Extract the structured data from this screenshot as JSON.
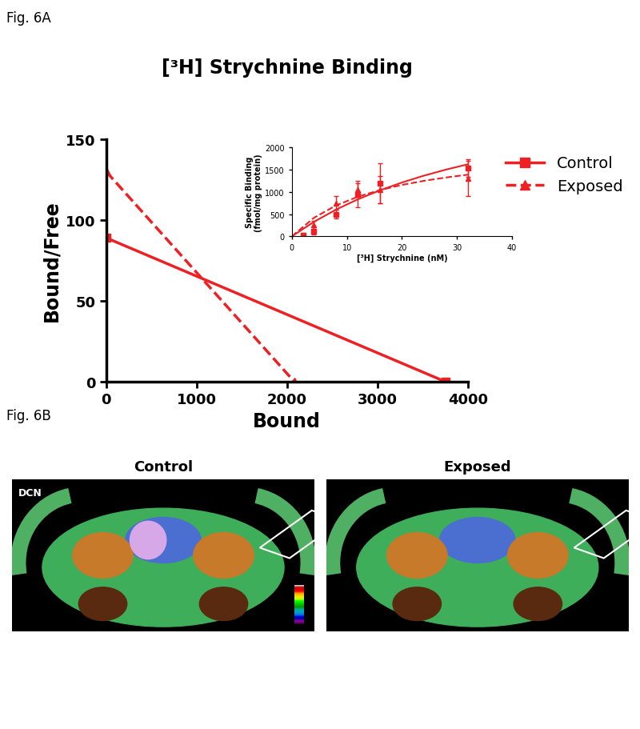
{
  "figure_labels": {
    "a": "Fig. 6A",
    "b": "Fig. 6B"
  },
  "chart_data": [
    {
      "type": "line",
      "title": "[³H] Strychnine Binding",
      "x_label": "Bound",
      "y_label": "Bound/Free",
      "xlim": [
        0,
        4000
      ],
      "xticks": [
        0,
        1000,
        2000,
        3000,
        4000
      ],
      "ylim": [
        0,
        150
      ],
      "yticks": [
        0,
        50,
        100,
        150
      ],
      "legend": "upper right",
      "grid": false,
      "series": [
        {
          "name": "Control",
          "color": "#ee2024",
          "marker": "square",
          "line_style": "solid",
          "x": [
            0,
            3750
          ],
          "values": [
            89,
            0
          ]
        },
        {
          "name": "Exposed",
          "color": "#ee2024",
          "marker": "triangle",
          "line_style": "dashed",
          "x": [
            0,
            2080
          ],
          "values": [
            130,
            0
          ]
        }
      ]
    },
    {
      "type": "scatter",
      "x_label": "[³H] Strychnine (nM)",
      "y_label": "Specific Binding\n(fmol/mg protein)",
      "xlim": [
        0,
        40
      ],
      "xticks": [
        0,
        10,
        20,
        30,
        40
      ],
      "ylim": [
        0,
        2000
      ],
      "yticks": [
        0,
        500,
        1000,
        1500,
        2000
      ],
      "grid": false,
      "series": [
        {
          "name": "Control",
          "color": "#ee2024",
          "marker": "square",
          "line_style": "solid",
          "x": [
            2,
            4,
            8,
            12,
            16,
            32
          ],
          "values": [
            20,
            120,
            500,
            950,
            1200,
            1540
          ],
          "error": [
            50,
            80,
            100,
            300,
            450,
            200
          ],
          "fit_x": [
            0,
            4,
            8,
            12,
            16,
            20,
            24,
            28,
            32
          ],
          "fit_values": [
            0,
            326,
            600,
            833,
            1034,
            1210,
            1364,
            1500,
            1620
          ]
        },
        {
          "name": "Exposed",
          "color": "#ee2024",
          "marker": "triangle",
          "line_style": "dashed",
          "x": [
            2,
            4,
            8,
            12,
            16,
            32
          ],
          "values": [
            20,
            250,
            750,
            1050,
            1050,
            1300
          ],
          "error": [
            60,
            100,
            150,
            150,
            300,
            400
          ],
          "fit_x": [
            0,
            4,
            8,
            12,
            16,
            20,
            24,
            28,
            32
          ],
          "fit_values": [
            0,
            416,
            693,
            891,
            1040,
            1156,
            1248,
            1323,
            1387
          ]
        }
      ]
    }
  ],
  "panel_b": {
    "titles": [
      "Control",
      "Exposed"
    ],
    "region_label": "DCN"
  }
}
